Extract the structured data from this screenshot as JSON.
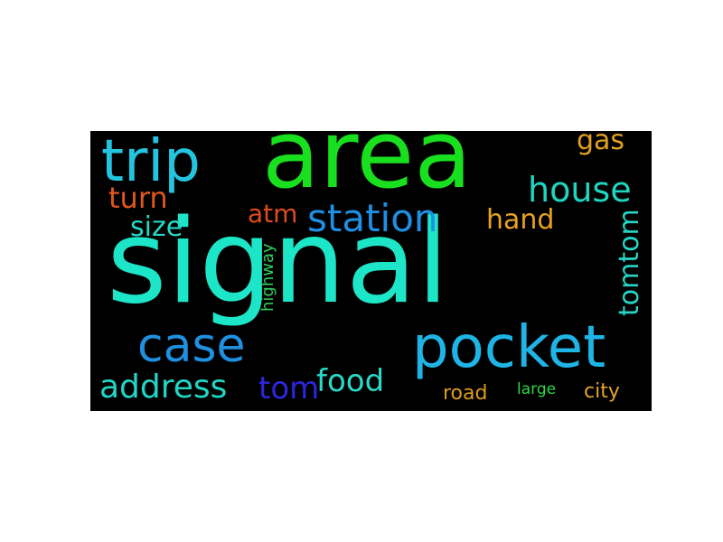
{
  "wordcloud": {
    "background": "#000000",
    "words": [
      {
        "id": "signal",
        "text": "signal",
        "color": "#1de6c8"
      },
      {
        "id": "area",
        "text": "area",
        "color": "#19e01e"
      },
      {
        "id": "trip",
        "text": "trip",
        "color": "#23c4e0"
      },
      {
        "id": "pocket",
        "text": "pocket",
        "color": "#1eb4e6"
      },
      {
        "id": "case",
        "text": "case",
        "color": "#1f8fe0"
      },
      {
        "id": "station",
        "text": "station",
        "color": "#1e8fe3"
      },
      {
        "id": "house",
        "text": "house",
        "color": "#1ed6c0"
      },
      {
        "id": "address",
        "text": "address",
        "color": "#21d6c6"
      },
      {
        "id": "food",
        "text": "food",
        "color": "#2ad9c8"
      },
      {
        "id": "tom",
        "text": "tom",
        "color": "#2d25e0"
      },
      {
        "id": "turn",
        "text": "turn",
        "color": "#e0561e"
      },
      {
        "id": "size",
        "text": "size",
        "color": "#24d8c4"
      },
      {
        "id": "atm",
        "text": "atm",
        "color": "#e04a1e"
      },
      {
        "id": "hand",
        "text": "hand",
        "color": "#e8a21e"
      },
      {
        "id": "gas",
        "text": "gas",
        "color": "#e3a01f"
      },
      {
        "id": "tomtom",
        "text": "tomtom",
        "color": "#27d6c4"
      },
      {
        "id": "highway",
        "text": "highway",
        "color": "#2ed05a"
      },
      {
        "id": "road",
        "text": "road",
        "color": "#e09a1e"
      },
      {
        "id": "large",
        "text": "large",
        "color": "#2ed94a"
      },
      {
        "id": "city",
        "text": "city",
        "color": "#e3a52a"
      }
    ]
  }
}
